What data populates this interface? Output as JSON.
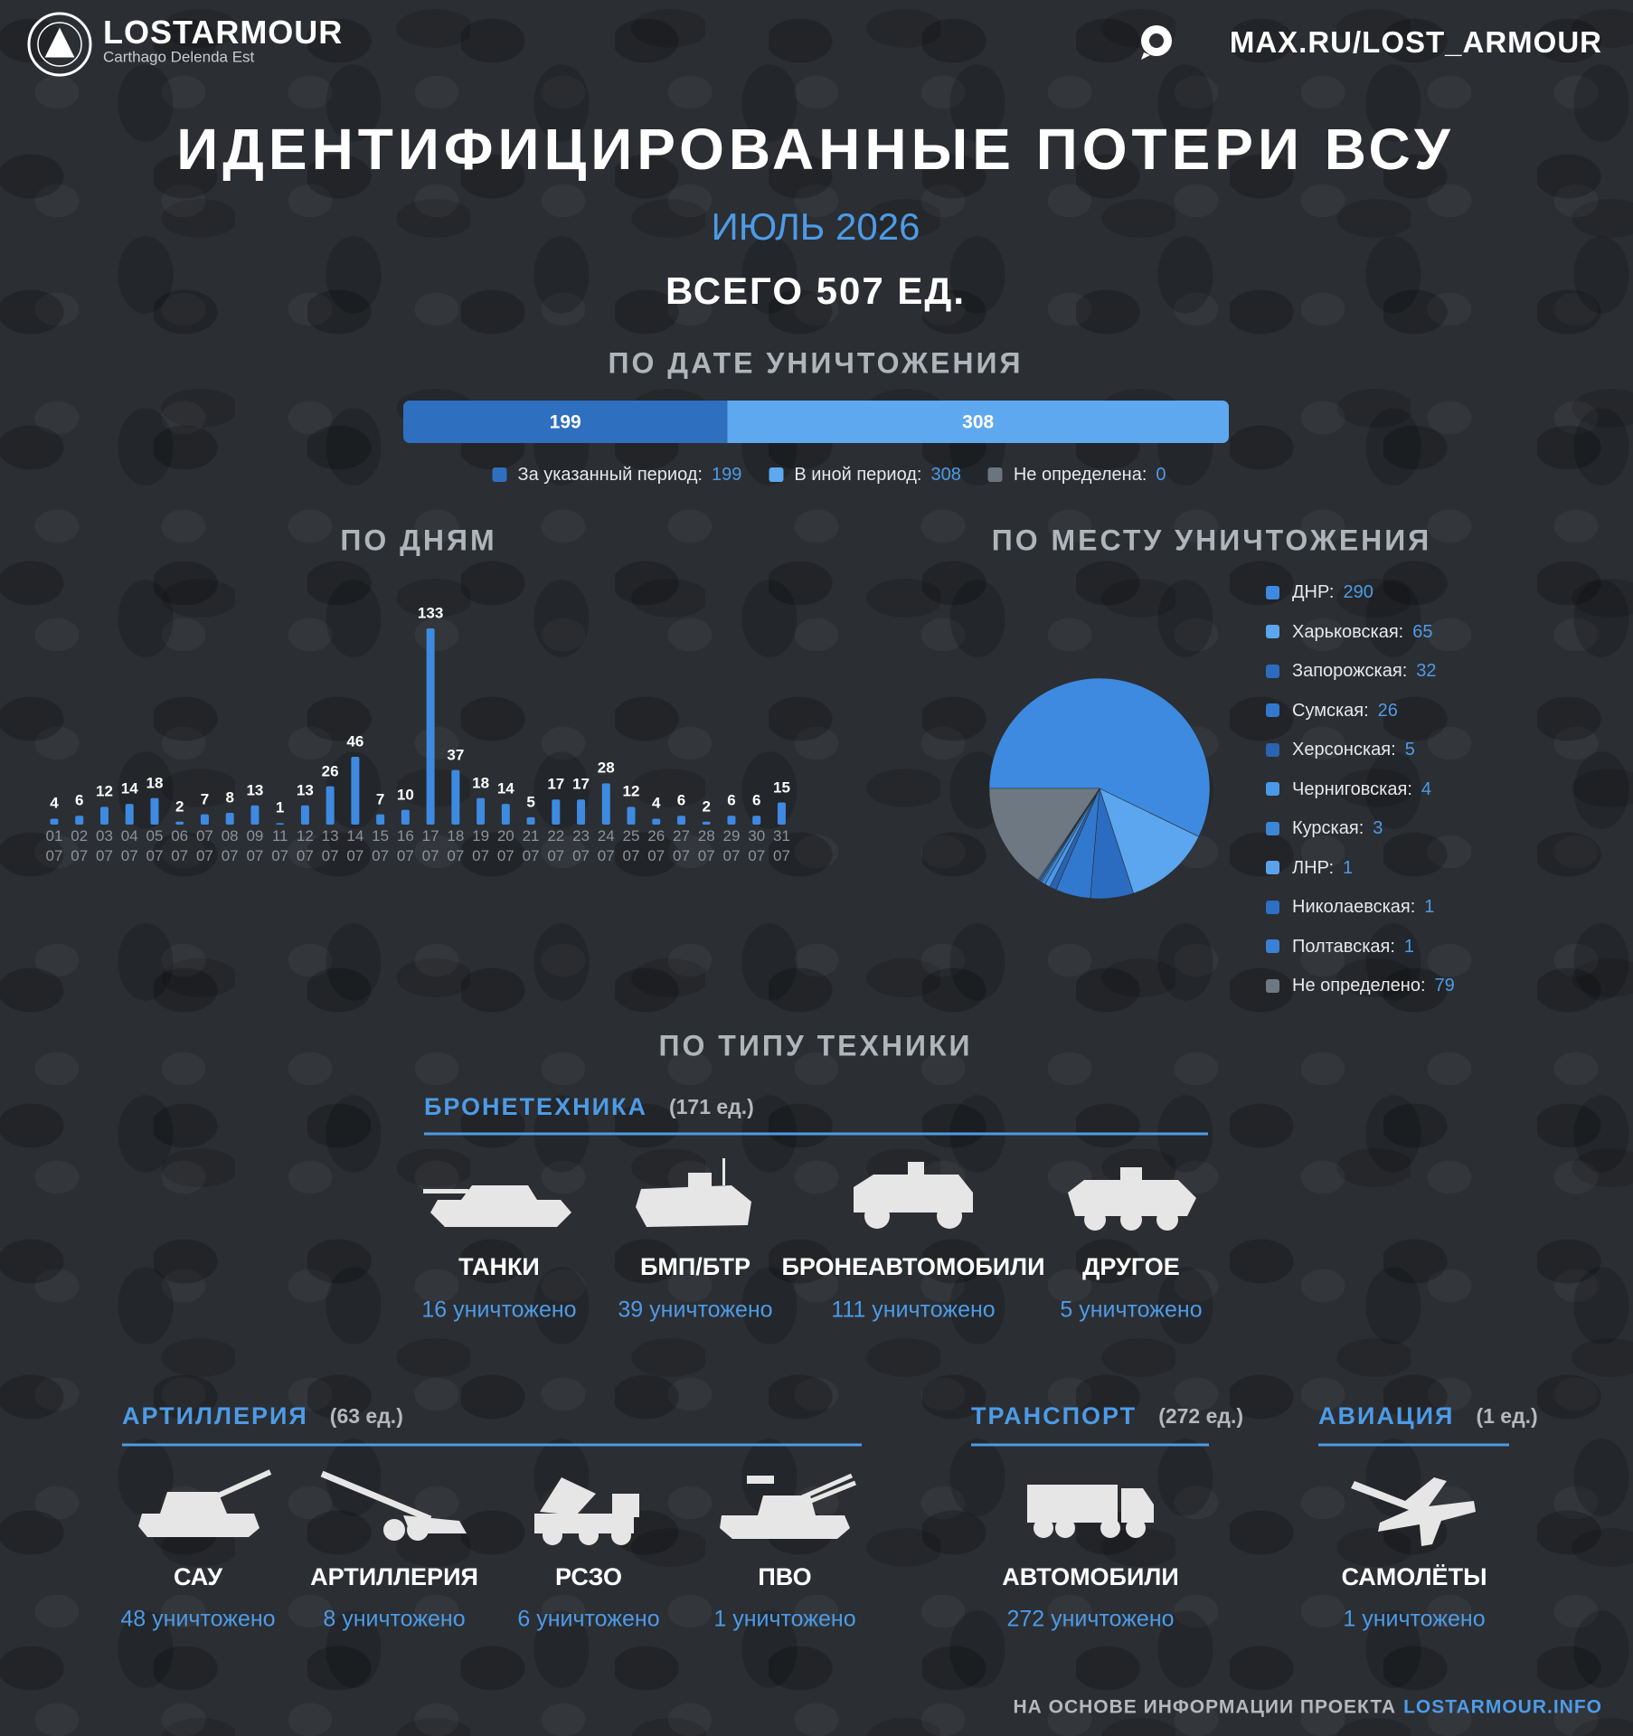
{
  "header": {
    "logo_text": "LOSTARMOUR",
    "motto": "Carthago Delenda Est",
    "link": "MAX.RU/LOST_ARMOUR"
  },
  "title": "ИДЕНТИФИЦИРОВАННЫЕ ПОТЕРИ ВСУ",
  "subtitle": "ИЮЛЬ 2026",
  "total": "ВСЕГО 507 ЕД.",
  "chart_data": [
    {
      "type": "stacked_bar",
      "title": "ПО ДАТЕ УНИЧТОЖЕНИЯ",
      "series": [
        {
          "name": "За указанный период:",
          "color": "#2f6fc0",
          "values": [
            199
          ]
        },
        {
          "name": "В иной период:",
          "color": "#5ea8ef",
          "values": [
            308
          ]
        },
        {
          "name": "Не определена:",
          "color": "#6b7580",
          "values": [
            0
          ]
        }
      ]
    },
    {
      "type": "bar",
      "title": "ПО ДНЯМ",
      "color": "#3d8ae0",
      "categories": [
        "01\n07",
        "02\n07",
        "03\n07",
        "04\n07",
        "05\n07",
        "06\n07",
        "07\n07",
        "08\n07",
        "09\n07",
        "11\n07",
        "12\n07",
        "13\n07",
        "14\n07",
        "15\n07",
        "16\n07",
        "17\n07",
        "18\n07",
        "19\n07",
        "20\n07",
        "21\n07",
        "22\n07",
        "23\n07",
        "24\n07",
        "25\n07",
        "26\n07",
        "27\n07",
        "28\n07",
        "29\n07",
        "30\n07",
        "31\n07"
      ],
      "values": [
        4,
        6,
        12,
        14,
        18,
        2,
        7,
        8,
        13,
        1,
        13,
        26,
        46,
        7,
        10,
        133,
        37,
        18,
        14,
        5,
        17,
        17,
        28,
        12,
        4,
        6,
        2,
        6,
        6,
        15
      ]
    },
    {
      "type": "pie",
      "title": "ПО МЕСТУ УНИЧТОЖЕНИЯ",
      "categories": [
        "ДНР:",
        "Харьковская:",
        "Запорожская:",
        "Сумская:",
        "Херсонская:",
        "Черниговская:",
        "Курская:",
        "ЛНР:",
        "Николаевская:",
        "Полтавская:",
        "Не определено:"
      ],
      "values": [
        290,
        65,
        32,
        26,
        5,
        4,
        3,
        1,
        1,
        1,
        79
      ],
      "colors": [
        "#3d8ae0",
        "#5ba6ee",
        "#2c6cc0",
        "#3178cf",
        "#2a63b0",
        "#4a98e8",
        "#3c86d8",
        "#5aa3ec",
        "#2e70c4",
        "#3a80d4",
        "#6e7882"
      ]
    }
  ],
  "equipment": {
    "title": "ПО ТИПУ ТЕХНИКИ",
    "groups": [
      {
        "name": "БРОНЕТЕХНИКА",
        "count": "(171 ед.)",
        "items": [
          {
            "label": "ТАНКИ",
            "value": "16 уничтожено"
          },
          {
            "label": "БМП/БТР",
            "value": "39 уничтожено"
          },
          {
            "label": "БРОНЕАВТОМОБИЛИ",
            "value": "111 уничтожено"
          },
          {
            "label": "ДРУГОЕ",
            "value": "5 уничтожено"
          }
        ]
      },
      {
        "name": "АРТИЛЛЕРИЯ",
        "count": "(63 ед.)",
        "items": [
          {
            "label": "САУ",
            "value": "48 уничтожено"
          },
          {
            "label": "АРТИЛЛЕРИЯ",
            "value": "8 уничтожено"
          },
          {
            "label": "РСЗО",
            "value": "6 уничтожено"
          },
          {
            "label": "ПВО",
            "value": "1 уничтожено"
          }
        ]
      },
      {
        "name": "ТРАНСПОРТ",
        "count": "(272 ед.)",
        "items": [
          {
            "label": "АВТОМОБИЛИ",
            "value": "272 уничтожено"
          }
        ]
      },
      {
        "name": "АВИАЦИЯ",
        "count": "(1 ед.)",
        "items": [
          {
            "label": "САМОЛЁТЫ",
            "value": "1 уничтожено"
          }
        ]
      }
    ]
  },
  "footer": {
    "text": "НА ОСНОВЕ ИНФОРМАЦИИ ПРОЕКТА",
    "link": "LOSTARMOUR.INFO"
  }
}
